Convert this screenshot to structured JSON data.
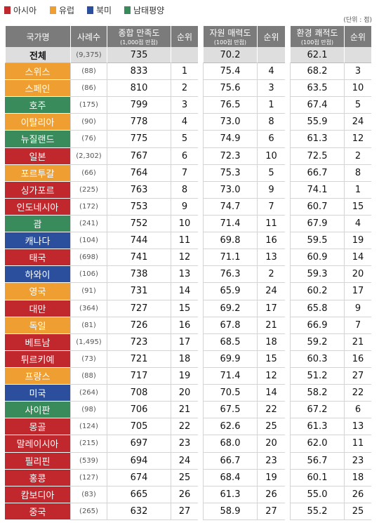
{
  "legend": [
    {
      "label": "아시아",
      "color": "#c0282d"
    },
    {
      "label": "유럽",
      "color": "#ef9f32"
    },
    {
      "label": "북미",
      "color": "#2b4f9c"
    },
    {
      "label": "남태평양",
      "color": "#3a8b5c"
    }
  ],
  "unit_note": "(단위 : 점)",
  "table": {
    "headers": [
      {
        "label": "국가명"
      },
      {
        "label": "사례수"
      },
      {
        "label": "종합 만족도",
        "sub": "(1,000점 만점)"
      },
      {
        "label": "순위"
      },
      {
        "label": "자원 매력도",
        "sub": "(100점 만점)"
      },
      {
        "label": "순위"
      },
      {
        "label": "환경 쾌적도",
        "sub": "(100점 만점)"
      },
      {
        "label": "순위"
      }
    ],
    "total": [
      "전체",
      "(9,375)",
      "735",
      "70.2",
      "62.1"
    ],
    "rows": [
      {
        "color": "#ef9f32",
        "cells": [
          "스위스",
          "(88)",
          "833",
          "1",
          "75.4",
          "4",
          "68.2",
          "3"
        ]
      },
      {
        "color": "#ef9f32",
        "cells": [
          "스페인",
          "(86)",
          "810",
          "2",
          "75.6",
          "3",
          "63.5",
          "10"
        ]
      },
      {
        "color": "#3a8b5c",
        "cells": [
          "호주",
          "(175)",
          "799",
          "3",
          "76.5",
          "1",
          "67.4",
          "5"
        ]
      },
      {
        "color": "#ef9f32",
        "cells": [
          "이탈리아",
          "(90)",
          "778",
          "4",
          "73.0",
          "8",
          "55.9",
          "24"
        ]
      },
      {
        "color": "#3a8b5c",
        "cells": [
          "뉴질랜드",
          "(76)",
          "775",
          "5",
          "74.9",
          "6",
          "61.3",
          "12"
        ]
      },
      {
        "color": "#c0282d",
        "cells": [
          "일본",
          "(2,302)",
          "767",
          "6",
          "72.3",
          "10",
          "72.5",
          "2"
        ]
      },
      {
        "color": "#ef9f32",
        "cells": [
          "포르투갈",
          "(66)",
          "764",
          "7",
          "75.3",
          "5",
          "66.7",
          "8"
        ]
      },
      {
        "color": "#c0282d",
        "cells": [
          "싱가포르",
          "(225)",
          "763",
          "8",
          "73.0",
          "9",
          "74.1",
          "1"
        ]
      },
      {
        "color": "#c0282d",
        "cells": [
          "인도네시아",
          "(172)",
          "753",
          "9",
          "74.7",
          "7",
          "60.7",
          "15"
        ]
      },
      {
        "color": "#3a8b5c",
        "cells": [
          "괌",
          "(241)",
          "752",
          "10",
          "71.4",
          "11",
          "67.9",
          "4"
        ]
      },
      {
        "color": "#2b4f9c",
        "cells": [
          "캐나다",
          "(104)",
          "744",
          "11",
          "69.8",
          "16",
          "59.5",
          "19"
        ]
      },
      {
        "color": "#c0282d",
        "cells": [
          "태국",
          "(698)",
          "741",
          "12",
          "71.1",
          "13",
          "60.9",
          "14"
        ]
      },
      {
        "color": "#2b4f9c",
        "cells": [
          "하와이",
          "(106)",
          "738",
          "13",
          "76.3",
          "2",
          "59.3",
          "20"
        ]
      },
      {
        "color": "#ef9f32",
        "cells": [
          "영국",
          "(91)",
          "731",
          "14",
          "65.9",
          "24",
          "60.2",
          "17"
        ]
      },
      {
        "color": "#c0282d",
        "cells": [
          "대만",
          "(364)",
          "727",
          "15",
          "69.2",
          "17",
          "65.8",
          "9"
        ]
      },
      {
        "color": "#ef9f32",
        "cells": [
          "독일",
          "(81)",
          "726",
          "16",
          "67.8",
          "21",
          "66.9",
          "7"
        ]
      },
      {
        "color": "#c0282d",
        "cells": [
          "베트남",
          "(1,495)",
          "723",
          "17",
          "68.5",
          "18",
          "59.2",
          "21"
        ]
      },
      {
        "color": "#c0282d",
        "cells": [
          "튀르키예",
          "(73)",
          "721",
          "18",
          "69.9",
          "15",
          "60.3",
          "16"
        ]
      },
      {
        "color": "#ef9f32",
        "cells": [
          "프랑스",
          "(88)",
          "717",
          "19",
          "71.4",
          "12",
          "51.2",
          "27"
        ]
      },
      {
        "color": "#2b4f9c",
        "cells": [
          "미국",
          "(264)",
          "708",
          "20",
          "70.5",
          "14",
          "58.2",
          "22"
        ]
      },
      {
        "color": "#3a8b5c",
        "cells": [
          "사이판",
          "(98)",
          "706",
          "21",
          "67.5",
          "22",
          "67.2",
          "6"
        ]
      },
      {
        "color": "#c0282d",
        "cells": [
          "몽골",
          "(124)",
          "705",
          "22",
          "62.6",
          "25",
          "61.3",
          "13"
        ]
      },
      {
        "color": "#c0282d",
        "cells": [
          "말레이시아",
          "(215)",
          "697",
          "23",
          "68.0",
          "20",
          "62.0",
          "11"
        ]
      },
      {
        "color": "#c0282d",
        "cells": [
          "필리핀",
          "(539)",
          "694",
          "24",
          "66.7",
          "23",
          "56.7",
          "23"
        ]
      },
      {
        "color": "#c0282d",
        "cells": [
          "홍콩",
          "(127)",
          "674",
          "25",
          "68.4",
          "19",
          "60.1",
          "18"
        ]
      },
      {
        "color": "#c0282d",
        "cells": [
          "캄보디아",
          "(83)",
          "665",
          "26",
          "61.3",
          "26",
          "55.0",
          "26"
        ]
      },
      {
        "color": "#c0282d",
        "cells": [
          "중국",
          "(265)",
          "632",
          "27",
          "58.9",
          "27",
          "55.2",
          "25"
        ]
      }
    ]
  }
}
